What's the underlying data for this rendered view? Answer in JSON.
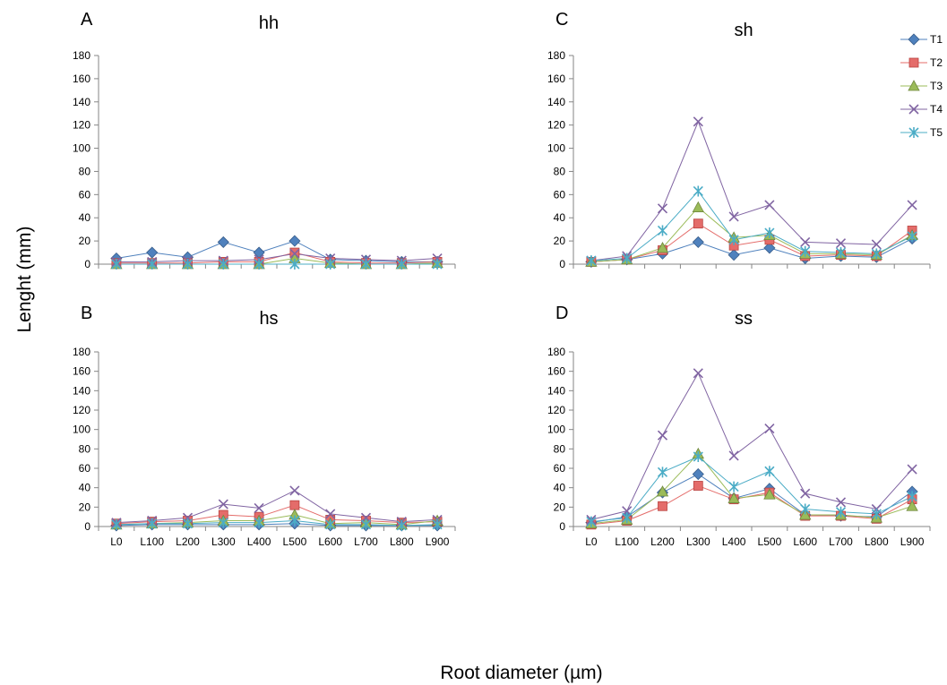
{
  "figure": {
    "ylabel": "Lenght (mm)",
    "xlabel": "Root diameter (µm)"
  },
  "series_styles": [
    {
      "name": "T1",
      "color": "#4f81bd",
      "stroke": "#385d8a",
      "marker": "diamond"
    },
    {
      "name": "T2",
      "color": "#e46c6a",
      "stroke": "#b94340",
      "marker": "square"
    },
    {
      "name": "T3",
      "color": "#9bbb59",
      "stroke": "#71893f",
      "marker": "triangle"
    },
    {
      "name": "T4",
      "color": "#8064a2",
      "stroke": "#5c4776",
      "marker": "x"
    },
    {
      "name": "T5",
      "color": "#4bacc6",
      "stroke": "#31859c",
      "marker": "star"
    }
  ],
  "legend": [
    "T1",
    "T2",
    "T3",
    "T4",
    "T5"
  ],
  "chart_data": [
    {
      "panel": "A",
      "title": "hh",
      "type": "line",
      "categories": [
        "L0",
        "L100",
        "L200",
        "L300",
        "L400",
        "L500",
        "L600",
        "L700",
        "L800",
        "L900"
      ],
      "ylim": [
        0,
        180
      ],
      "yticks": [
        0,
        20,
        40,
        60,
        80,
        100,
        120,
        140,
        160,
        180
      ],
      "show_x_ticks": false,
      "series": [
        {
          "name": "T1",
          "values": [
            5,
            10,
            6,
            19,
            10,
            20,
            4,
            3,
            2,
            2
          ]
        },
        {
          "name": "T2",
          "values": [
            1,
            1,
            1,
            2,
            2,
            10,
            2,
            1,
            1,
            2
          ]
        },
        {
          "name": "T3",
          "values": [
            0,
            0,
            0,
            0,
            0,
            5,
            1,
            0,
            0,
            1
          ]
        },
        {
          "name": "T4",
          "values": [
            2,
            2,
            3,
            3,
            4,
            9,
            5,
            4,
            3,
            5
          ]
        },
        {
          "name": "T5",
          "values": [
            0,
            0,
            0,
            0,
            0,
            0,
            0,
            0,
            0,
            0
          ]
        }
      ]
    },
    {
      "panel": "B",
      "title": "hs",
      "type": "line",
      "categories": [
        "L0",
        "L100",
        "L200",
        "L300",
        "L400",
        "L500",
        "L600",
        "L700",
        "L800",
        "L900"
      ],
      "ylim": [
        0,
        180
      ],
      "yticks": [
        0,
        20,
        40,
        60,
        80,
        100,
        120,
        140,
        160,
        180
      ],
      "show_x_ticks": true,
      "series": [
        {
          "name": "T1",
          "values": [
            1,
            2,
            2,
            2,
            2,
            3,
            1,
            1,
            1,
            1
          ]
        },
        {
          "name": "T2",
          "values": [
            3,
            5,
            6,
            12,
            10,
            22,
            7,
            6,
            4,
            5
          ]
        },
        {
          "name": "T3",
          "values": [
            2,
            3,
            4,
            6,
            6,
            12,
            3,
            4,
            2,
            6
          ]
        },
        {
          "name": "T4",
          "values": [
            4,
            6,
            9,
            23,
            19,
            37,
            13,
            9,
            5,
            7
          ]
        },
        {
          "name": "T5",
          "values": [
            2,
            3,
            3,
            4,
            4,
            6,
            2,
            2,
            1,
            2
          ]
        }
      ]
    },
    {
      "panel": "C",
      "title": "sh",
      "type": "line",
      "categories": [
        "L0",
        "L100",
        "L200",
        "L300",
        "L400",
        "L500",
        "L600",
        "L700",
        "L800",
        "L900"
      ],
      "ylim": [
        0,
        180
      ],
      "yticks": [
        0,
        20,
        40,
        60,
        80,
        100,
        120,
        140,
        160,
        180
      ],
      "show_x_ticks": false,
      "series": [
        {
          "name": "T1",
          "values": [
            2,
            4,
            9,
            19,
            8,
            14,
            5,
            7,
            6,
            22
          ]
        },
        {
          "name": "T2",
          "values": [
            2,
            4,
            12,
            35,
            16,
            21,
            7,
            8,
            7,
            29
          ]
        },
        {
          "name": "T3",
          "values": [
            2,
            4,
            14,
            49,
            23,
            25,
            9,
            9,
            8,
            25
          ]
        },
        {
          "name": "T4",
          "values": [
            3,
            7,
            48,
            123,
            41,
            51,
            19,
            18,
            17,
            51
          ]
        },
        {
          "name": "T5",
          "values": [
            3,
            5,
            29,
            63,
            21,
            27,
            11,
            10,
            9,
            24
          ]
        }
      ]
    },
    {
      "panel": "D",
      "title": "ss",
      "type": "line",
      "categories": [
        "L0",
        "L100",
        "L200",
        "L300",
        "L400",
        "L500",
        "L600",
        "L700",
        "L800",
        "L900"
      ],
      "ylim": [
        0,
        180
      ],
      "yticks": [
        0,
        20,
        40,
        60,
        80,
        100,
        120,
        140,
        160,
        180
      ],
      "show_x_ticks": true,
      "series": [
        {
          "name": "T1",
          "values": [
            4,
            10,
            35,
            54,
            29,
            39,
            12,
            11,
            10,
            36
          ]
        },
        {
          "name": "T2",
          "values": [
            2,
            6,
            21,
            42,
            28,
            35,
            11,
            11,
            8,
            28
          ]
        },
        {
          "name": "T3",
          "values": [
            3,
            7,
            36,
            75,
            29,
            33,
            12,
            12,
            9,
            21
          ]
        },
        {
          "name": "T4",
          "values": [
            7,
            16,
            94,
            158,
            73,
            101,
            34,
            25,
            18,
            59
          ]
        },
        {
          "name": "T5",
          "values": [
            5,
            9,
            56,
            72,
            41,
            57,
            18,
            15,
            13,
            31
          ]
        }
      ]
    }
  ]
}
